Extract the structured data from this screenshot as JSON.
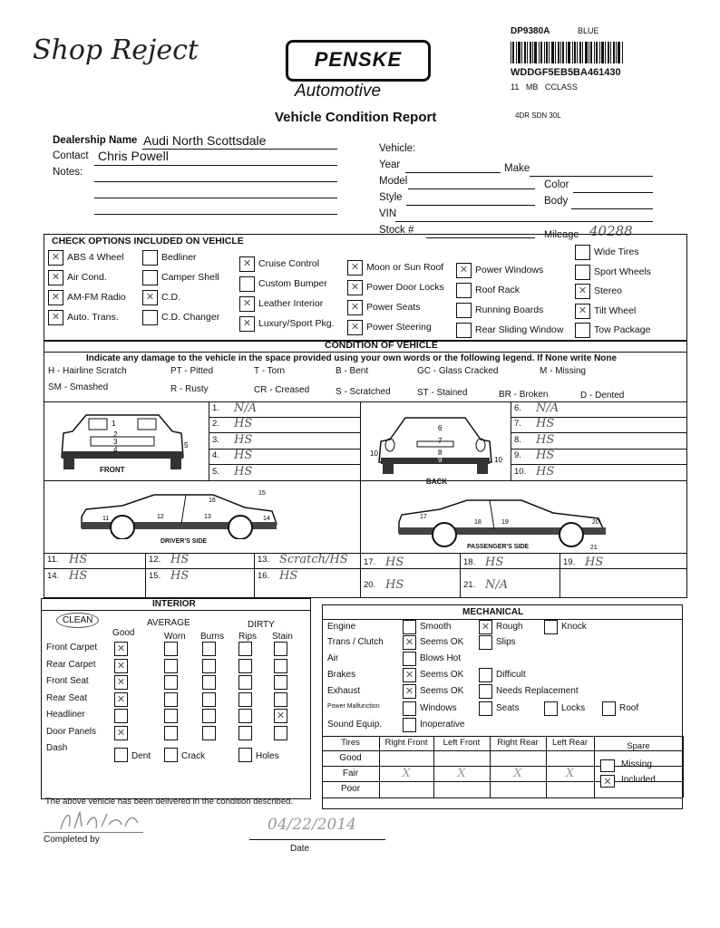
{
  "annotation": "Shop Reject",
  "logo": {
    "brand": "PENSKE",
    "sub": "Automotive"
  },
  "title": "Vehicle Condition Report",
  "sticker": {
    "stock": "DP9380A",
    "color": "BLUE",
    "vin": "WDDGF5EB5BA461430",
    "year_make_model": "11   MB   CCLASS",
    "style": "4DR SDN 30L"
  },
  "dealer": {
    "dealership_label": "Dealership Name",
    "dealership_value": "Audi North Scottsdale",
    "contact_label": "Contact",
    "contact_value": "Chris Powell",
    "notes_label": "Notes:"
  },
  "vehicle": {
    "heading": "Vehicle:",
    "year_label": "Year",
    "make_label": "Make",
    "model_label": "Model",
    "color_label": "Color",
    "style_label": "Style",
    "body_label": "Body",
    "vin_label": "VIN",
    "stock_label": "Stock #",
    "mileage_label": "Mileage",
    "mileage_value": "40288"
  },
  "options": {
    "heading": "CHECK OPTIONS INCLUDED ON VEHICLE",
    "columns": [
      [
        {
          "label": "ABS 4 Wheel",
          "checked": true
        },
        {
          "label": "Air Cond.",
          "checked": true
        },
        {
          "label": "AM-FM Radio",
          "checked": true
        },
        {
          "label": "Auto. Trans.",
          "checked": true
        }
      ],
      [
        {
          "label": "Bedliner",
          "checked": false
        },
        {
          "label": "Camper Shell",
          "checked": false
        },
        {
          "label": "C.D.",
          "checked": true
        },
        {
          "label": "C.D. Changer",
          "checked": false
        }
      ],
      [
        {
          "label": "Cruise Control",
          "checked": true
        },
        {
          "label": "Custom Bumper",
          "checked": false
        },
        {
          "label": "Leather Interior",
          "checked": true
        },
        {
          "label": "Luxury/Sport Pkg.",
          "checked": true
        }
      ],
      [
        {
          "label": "Moon or Sun Roof",
          "checked": true
        },
        {
          "label": "Power Door Locks",
          "checked": true
        },
        {
          "label": "Power Seats",
          "checked": true
        },
        {
          "label": "Power Steering",
          "checked": true
        }
      ],
      [
        {
          "label": "Power Windows",
          "checked": true
        },
        {
          "label": "Roof Rack",
          "checked": false
        },
        {
          "label": "Running Boards",
          "checked": false
        },
        {
          "label": "Rear Sliding Window",
          "checked": false
        }
      ],
      [
        {
          "label": "Wide Tires",
          "checked": false
        },
        {
          "label": "Sport Wheels",
          "checked": false
        },
        {
          "label": "Stereo",
          "checked": true
        },
        {
          "label": "Tilt Wheel",
          "checked": true
        },
        {
          "label": "Tow Package",
          "checked": false
        }
      ]
    ]
  },
  "condition": {
    "heading": "CONDITION OF VEHICLE",
    "instruction": "Indicate any damage to the vehicle in the space provided using your own words or the following legend. If None write None",
    "legend_row1": [
      "H - Hairline Scratch",
      "PT - Pitted",
      "T - Torn",
      "B - Bent",
      "GC - Glass Cracked",
      "M - Missing"
    ],
    "legend_row2": [
      "SM - Smashed",
      "R - Rusty",
      "CR - Creased",
      "S - Scratched",
      "ST - Stained",
      "BR - Broken",
      "D - Dented"
    ],
    "views": {
      "front": "FRONT",
      "back": "BACK",
      "driver": "DRIVER'S SIDE",
      "passenger": "PASSENGER'S SIDE"
    },
    "damage": [
      {
        "n": "1.",
        "v": "N/A"
      },
      {
        "n": "2.",
        "v": "HS"
      },
      {
        "n": "3.",
        "v": "HS"
      },
      {
        "n": "4.",
        "v": "HS"
      },
      {
        "n": "5.",
        "v": "HS"
      },
      {
        "n": "6.",
        "v": "N/A"
      },
      {
        "n": "7.",
        "v": "HS"
      },
      {
        "n": "8.",
        "v": "HS"
      },
      {
        "n": "9.",
        "v": "HS"
      },
      {
        "n": "10.",
        "v": "HS"
      },
      {
        "n": "11.",
        "v": "HS"
      },
      {
        "n": "12.",
        "v": "HS"
      },
      {
        "n": "13.",
        "v": "Scratch/HS"
      },
      {
        "n": "14.",
        "v": "HS"
      },
      {
        "n": "15.",
        "v": "HS"
      },
      {
        "n": "16.",
        "v": "HS"
      },
      {
        "n": "17.",
        "v": "HS"
      },
      {
        "n": "18.",
        "v": "HS"
      },
      {
        "n": "19.",
        "v": "HS"
      },
      {
        "n": "20.",
        "v": "HS"
      },
      {
        "n": "21.",
        "v": "N/A"
      }
    ]
  },
  "interior": {
    "heading": "INTERIOR",
    "clean": "CLEAN",
    "average": "AVERAGE",
    "dirty": "DIRTY",
    "columns": [
      "Good",
      "Worn",
      "Burns",
      "Rips",
      "Stain"
    ],
    "rows": [
      {
        "label": "Front Carpet",
        "checks": [
          true,
          false,
          false,
          false,
          false
        ]
      },
      {
        "label": "Rear Carpet",
        "checks": [
          true,
          false,
          false,
          false,
          false
        ]
      },
      {
        "label": "Front Seat",
        "checks": [
          true,
          false,
          false,
          false,
          false
        ]
      },
      {
        "label": "Rear Seat",
        "checks": [
          true,
          false,
          false,
          false,
          false
        ]
      },
      {
        "label": "Headliner",
        "checks": [
          false,
          false,
          false,
          false,
          true
        ]
      },
      {
        "label": "Door Panels",
        "checks": [
          true,
          false,
          false,
          false,
          false
        ]
      }
    ],
    "dash": {
      "label": "Dash",
      "options": [
        {
          "label": "Dent",
          "checked": false
        },
        {
          "label": "Crack",
          "checked": false
        },
        {
          "label": "Holes",
          "checked": false
        }
      ]
    }
  },
  "mechanical": {
    "heading": "MECHANICAL",
    "rows": [
      {
        "label": "Engine",
        "options": [
          {
            "label": "Smooth",
            "checked": false
          },
          {
            "label": "Rough",
            "checked": true
          },
          {
            "label": "Knock",
            "checked": false
          }
        ]
      },
      {
        "label": "Trans / Clutch",
        "options": [
          {
            "label": "Seems OK",
            "checked": true
          },
          {
            "label": "Slips",
            "checked": false
          }
        ]
      },
      {
        "label": "Air",
        "options": [
          {
            "label": "Blows Hot",
            "checked": false
          }
        ]
      },
      {
        "label": "Brakes",
        "options": [
          {
            "label": "Seems OK",
            "checked": true
          },
          {
            "label": "Difficult",
            "checked": false
          }
        ]
      },
      {
        "label": "Exhaust",
        "options": [
          {
            "label": "Seems OK",
            "checked": true
          },
          {
            "label": "Needs Replacement",
            "checked": false
          }
        ]
      },
      {
        "label": "Power Malfunction",
        "options": [
          {
            "label": "Windows",
            "checked": false
          },
          {
            "label": "Seats",
            "checked": false
          },
          {
            "label": "Locks",
            "checked": false
          },
          {
            "label": "Roof",
            "checked": false
          }
        ]
      },
      {
        "label": "Sound Equip.",
        "options": [
          {
            "label": "Inoperative",
            "checked": false
          }
        ]
      }
    ],
    "tires": {
      "columns": [
        "Tires",
        "Right Front",
        "Left Front",
        "Right Rear",
        "Left Rear",
        "Spare"
      ],
      "rows": [
        {
          "label": "Good",
          "marks": [
            "",
            "",
            "",
            ""
          ]
        },
        {
          "label": "Fair",
          "marks": [
            "X",
            "X",
            "X",
            "X"
          ]
        },
        {
          "label": "Poor",
          "marks": [
            "",
            "",
            "",
            ""
          ]
        }
      ],
      "spare": [
        {
          "label": "Missing",
          "checked": false
        },
        {
          "label": "Included",
          "checked": true
        }
      ]
    }
  },
  "footer": {
    "statement": "The above vehicle has been delivered in the condition described.",
    "completed_by_label": "Completed by",
    "date_label": "Date",
    "date_value": "04/22/2014"
  }
}
